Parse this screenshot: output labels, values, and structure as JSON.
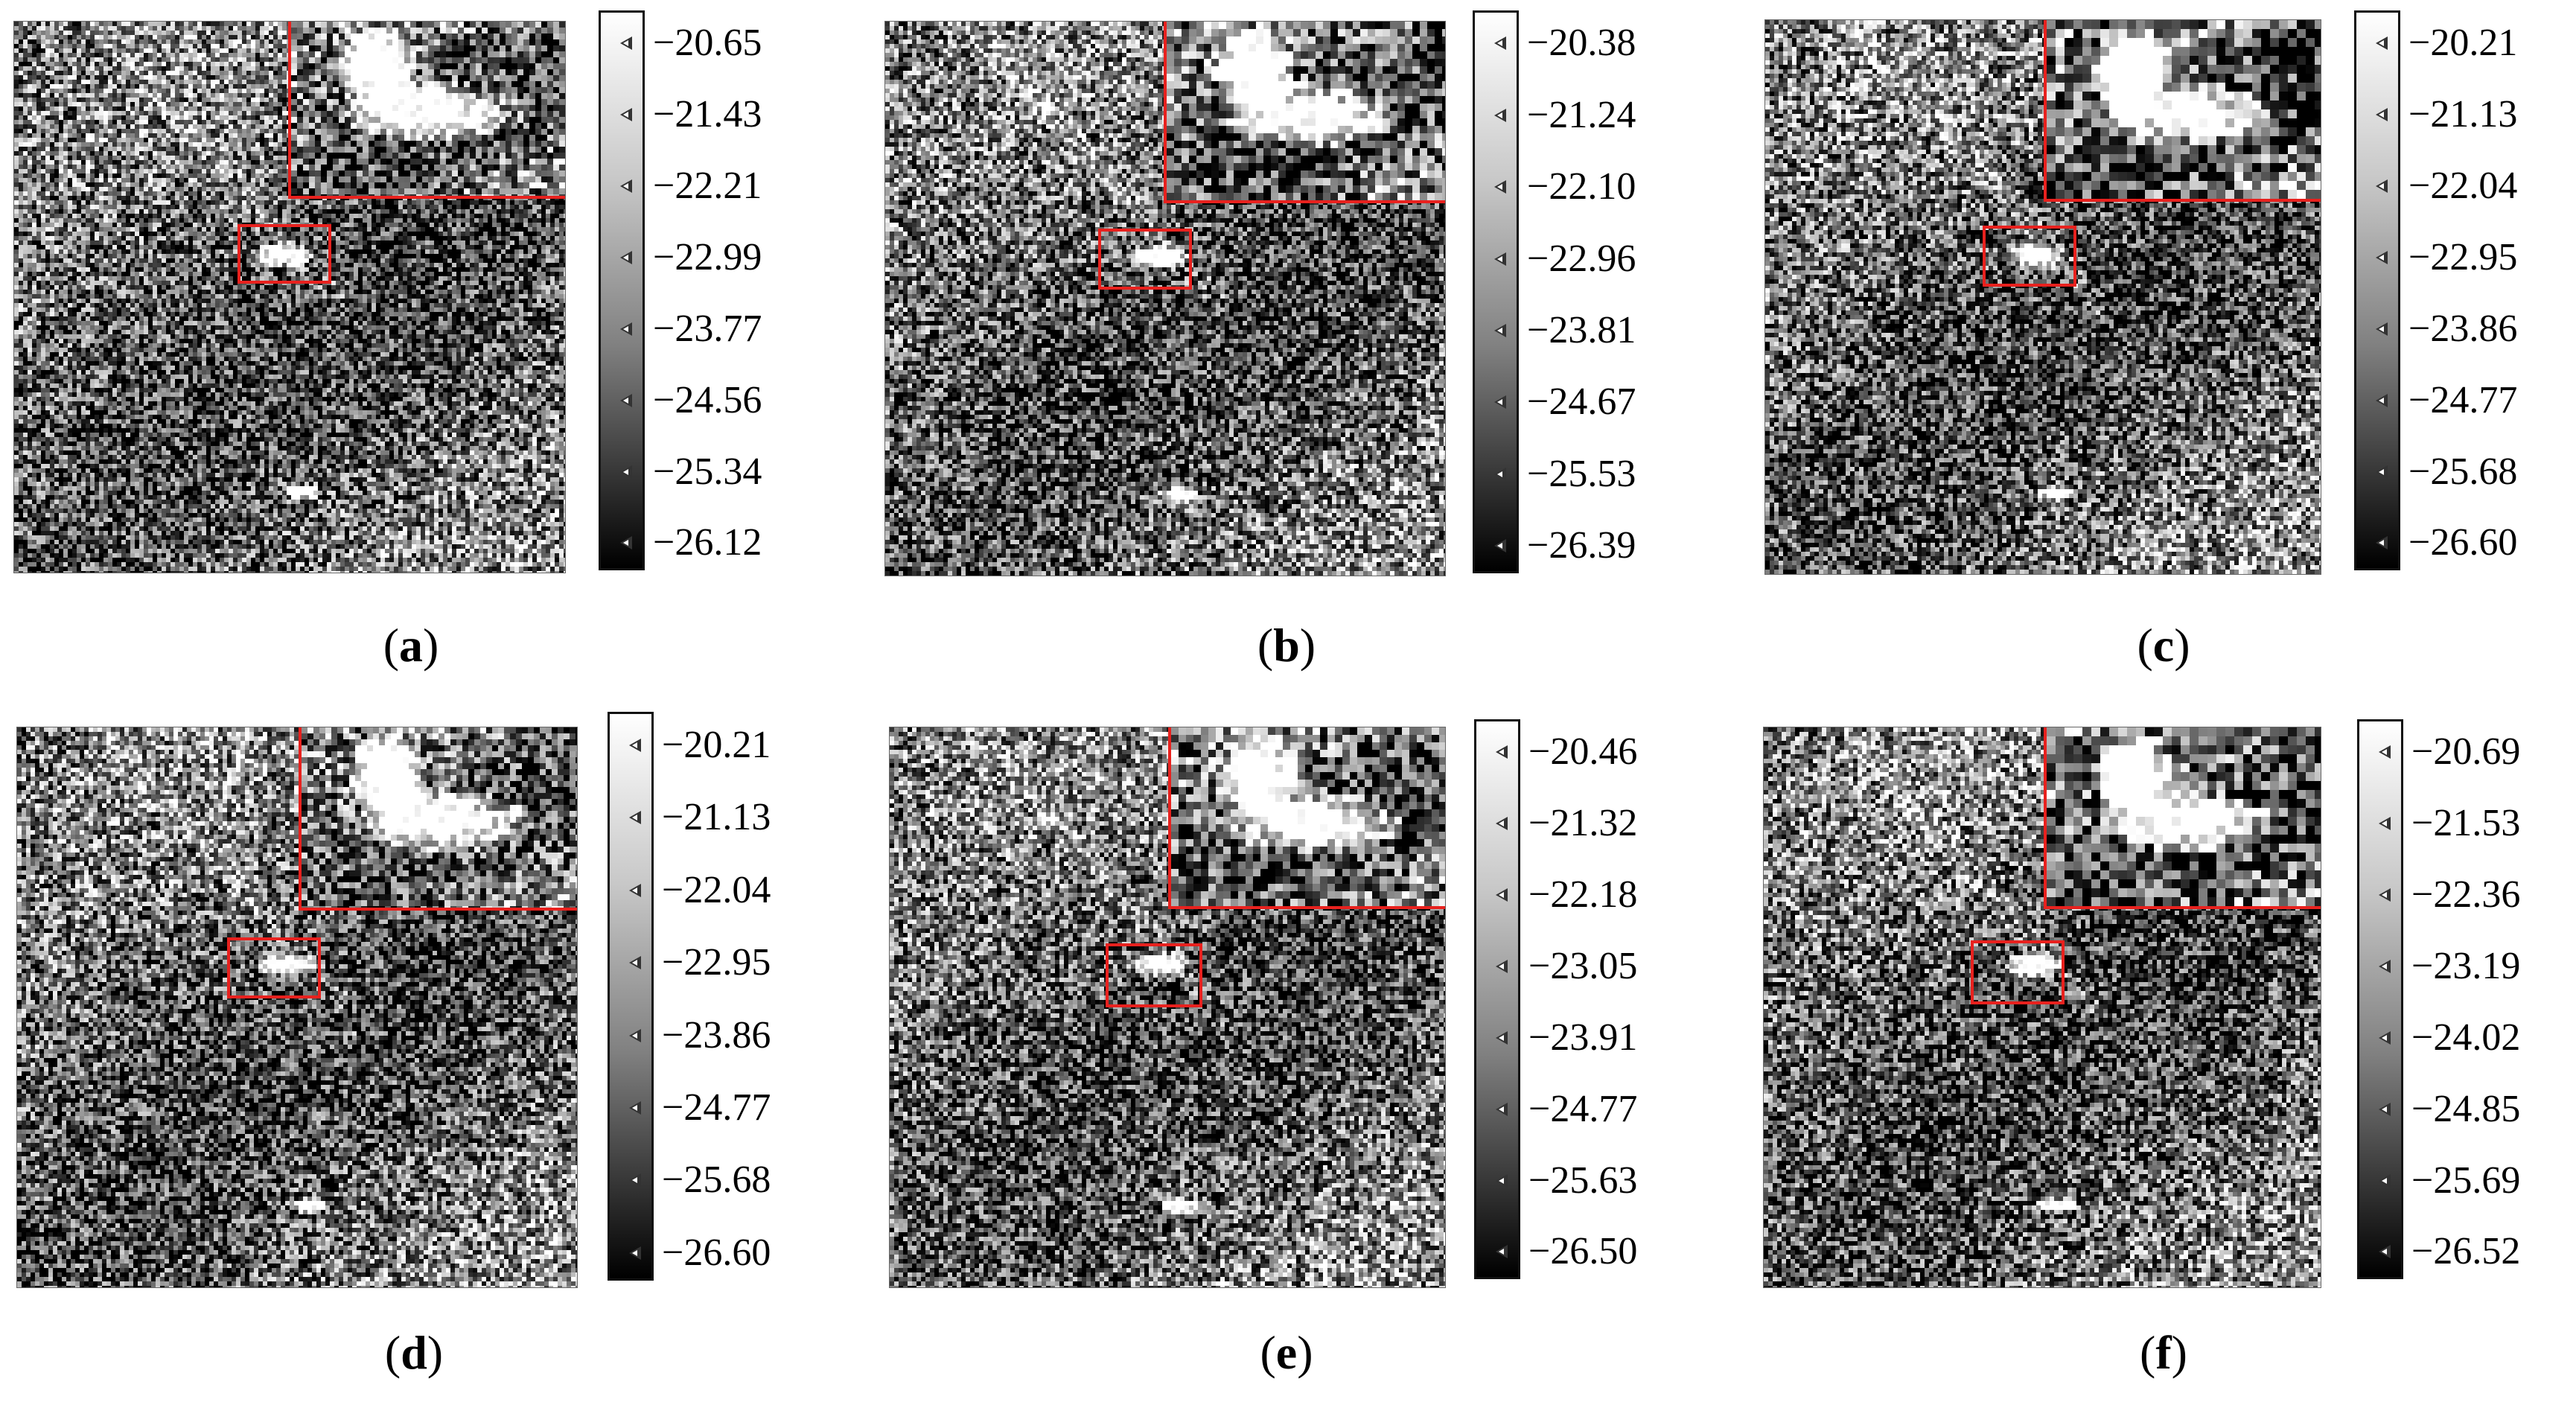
{
  "panels": [
    {
      "id": "a",
      "caption_letter": "a",
      "colorbar_ticks": [
        "−20.65",
        "−21.43",
        "−22.21",
        "−22.99",
        "−23.77",
        "−24.56",
        "−25.34",
        "−26.12"
      ]
    },
    {
      "id": "b",
      "caption_letter": "b",
      "colorbar_ticks": [
        "−20.38",
        "−21.24",
        "−22.10",
        "−22.96",
        "−23.81",
        "−24.67",
        "−25.53",
        "−26.39"
      ]
    },
    {
      "id": "c",
      "caption_letter": "c",
      "colorbar_ticks": [
        "−20.21",
        "−21.13",
        "−22.04",
        "−22.95",
        "−23.86",
        "−24.77",
        "−25.68",
        "−26.60"
      ]
    },
    {
      "id": "d",
      "caption_letter": "d",
      "colorbar_ticks": [
        "−20.21",
        "−21.13",
        "−22.04",
        "−22.95",
        "−23.86",
        "−24.77",
        "−25.68",
        "−26.60"
      ]
    },
    {
      "id": "e",
      "caption_letter": "e",
      "colorbar_ticks": [
        "−20.46",
        "−21.32",
        "−22.18",
        "−23.05",
        "−23.91",
        "−24.77",
        "−25.63",
        "−26.50"
      ]
    },
    {
      "id": "f",
      "caption_letter": "f",
      "colorbar_ticks": [
        "−20.69",
        "−21.53",
        "−22.36",
        "−23.19",
        "−24.02",
        "−24.85",
        "−25.69",
        "−26.52"
      ]
    }
  ],
  "colors": {
    "roi_box": "#e8211e",
    "colorbar_top": "#ffffff",
    "colorbar_bottom": "#000000"
  }
}
